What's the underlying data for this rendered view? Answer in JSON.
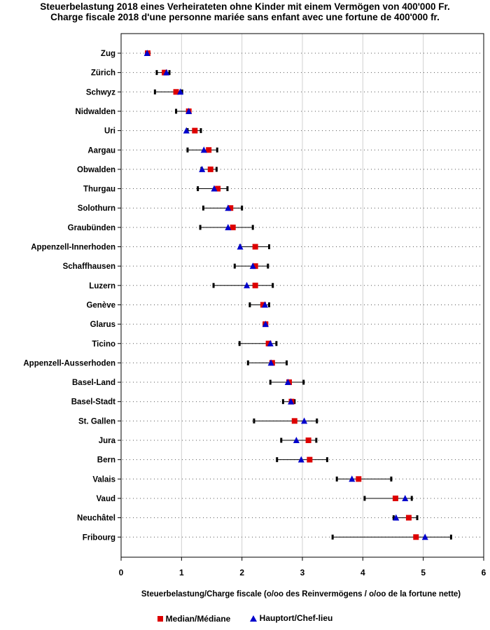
{
  "title_line1": "Steuerbelastung 2018 eines Verheirateten ohne Kinder mit einem Vermögen von 400'000 Fr.",
  "title_line2": "Charge fiscale 2018 d'une personne mariée sans enfant avec une fortune de 400'000 fr.",
  "legend": {
    "median_label": "Median/Médiane",
    "capital_label": "Hauptort/Chef-lieu"
  },
  "colors": {
    "median": "#dd0000",
    "capital": "#0000cc",
    "range": "#000000"
  },
  "chart_data": {
    "type": "scatter",
    "title": "Steuerbelastung 2018 eines Verheirateten ohne Kinder mit einem Vermögen von 400'000 Fr. / Charge fiscale 2018 d'une personne mariée sans enfant avec une fortune de 400'000 fr.",
    "xlabel": "Steuerbelastung/Charge fiscale (o/oo des Reinvermögens / o/oo de la fortune nette)",
    "ylabel": "",
    "xlim": [
      0,
      6
    ],
    "xticks": [
      0,
      1,
      2,
      3,
      4,
      5,
      6
    ],
    "grid": "vertical",
    "legend_position": "bottom",
    "categories": [
      "Zug",
      "Zürich",
      "Schwyz",
      "Nidwalden",
      "Uri",
      "Aargau",
      "Obwalden",
      "Thurgau",
      "Solothurn",
      "Graubünden",
      "Appenzell-Innerhoden",
      "Schaffhausen",
      "Luzern",
      "Genève",
      "Glarus",
      "Ticino",
      "Appenzell-Ausserhoden",
      "Basel-Land",
      "Basel-Stadt",
      "St. Gallen",
      "Jura",
      "Bern",
      "Valais",
      "Vaud",
      "Neuchâtel",
      "Fribourg"
    ],
    "series": [
      {
        "name": "Min",
        "values": [
          0.42,
          0.59,
          0.56,
          0.91,
          1.1,
          1.1,
          1.33,
          1.27,
          1.36,
          1.31,
          1.97,
          1.88,
          1.53,
          2.13,
          2.36,
          1.96,
          2.1,
          2.47,
          2.68,
          2.2,
          2.65,
          2.58,
          3.57,
          4.03,
          4.51,
          3.5
        ]
      },
      {
        "name": "Max",
        "values": [
          0.46,
          0.8,
          1.01,
          1.14,
          1.32,
          1.59,
          1.58,
          1.76,
          2.0,
          2.18,
          2.45,
          2.43,
          2.51,
          2.45,
          2.41,
          2.57,
          2.74,
          3.02,
          2.87,
          3.24,
          3.23,
          3.41,
          4.47,
          4.81,
          4.9,
          5.46
        ]
      },
      {
        "name": "Median/Médiane",
        "values": [
          0.44,
          0.72,
          0.91,
          1.12,
          1.22,
          1.45,
          1.48,
          1.6,
          1.81,
          1.85,
          2.22,
          2.22,
          2.22,
          2.35,
          2.39,
          2.44,
          2.5,
          2.78,
          2.82,
          2.87,
          3.1,
          3.12,
          3.93,
          4.54,
          4.76,
          4.88
        ]
      },
      {
        "name": "Hauptort/Chef-lieu",
        "values": [
          0.43,
          0.75,
          0.98,
          1.12,
          1.08,
          1.37,
          1.34,
          1.54,
          1.77,
          1.77,
          1.97,
          2.18,
          2.08,
          2.38,
          2.39,
          2.47,
          2.48,
          2.76,
          2.81,
          3.03,
          2.9,
          2.98,
          3.82,
          4.7,
          4.55,
          5.03
        ]
      }
    ]
  }
}
